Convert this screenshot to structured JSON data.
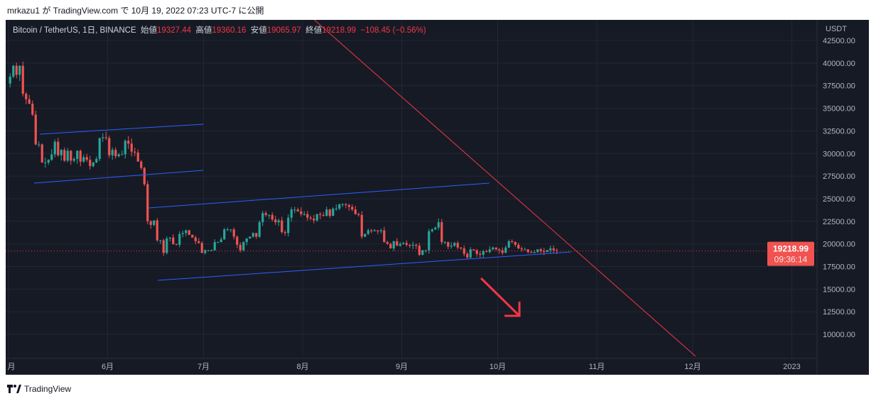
{
  "published": "mrkazu1 が TradingView.com で 10月 19, 2022 07:23 UTC-7 に公開",
  "legend": {
    "symbol": "Bitcoin / TetherUS, 1日, BINANCE",
    "open_label": "始値",
    "open": "19327.44",
    "high_label": "高値",
    "high": "19360.16",
    "low_label": "安値",
    "low": "19065.97",
    "close_label": "終値",
    "close": "19218.99",
    "change": "−108.45 (−0.56%)"
  },
  "price_axis": {
    "currency": "USDT",
    "ticks": [
      "42500.00",
      "40000.00",
      "37500.00",
      "35000.00",
      "32500.00",
      "30000.00",
      "27500.00",
      "25000.00",
      "22500.00",
      "20000.00",
      "17500.00",
      "15000.00",
      "12500.00",
      "10000.00"
    ],
    "last_price": "19218.99",
    "countdown": "09:36:14"
  },
  "time_axis": {
    "labels": [
      {
        "t": "月",
        "day": 0
      },
      {
        "t": "6月",
        "day": 31
      },
      {
        "t": "7月",
        "day": 61
      },
      {
        "t": "8月",
        "day": 92
      },
      {
        "t": "9月",
        "day": 123
      },
      {
        "t": "10月",
        "day": 153
      },
      {
        "t": "11月",
        "day": 184
      },
      {
        "t": "12月",
        "day": 214
      },
      {
        "t": "2023",
        "day": 245
      }
    ]
  },
  "colors": {
    "up": "#26a69a",
    "down": "#ef5350",
    "channel": "#2962ff",
    "trend": "#f23645"
  },
  "footer": "TradingView",
  "chart_data": {
    "type": "candlestick",
    "start_date": "2022-05-01",
    "closes": [
      38500,
      39700,
      38700,
      39700,
      36600,
      36000,
      35500,
      34300,
      31000,
      31000,
      29000,
      29000,
      29300,
      29900,
      31300,
      29800,
      30400,
      29200,
      30300,
      29200,
      29400,
      30300,
      29100,
      29600,
      29300,
      28600,
      29000,
      29400,
      31700,
      31800,
      31700,
      29800,
      30400,
      29700,
      29900,
      29900,
      31400,
      31100,
      30200,
      30100,
      29100,
      28400,
      26600,
      22500,
      22100,
      22600,
      20400,
      20400,
      19000,
      20600,
      20700,
      20000,
      19900,
      21100,
      21200,
      21500,
      21000,
      20700,
      20300,
      20100,
      19000,
      19300,
      19300,
      19300,
      20200,
      20200,
      20500,
      21600,
      21600,
      21600,
      20800,
      19900,
      19300,
      20200,
      20600,
      20800,
      21200,
      20800,
      22400,
      23400,
      23200,
      23200,
      22700,
      22400,
      22600,
      21300,
      21200,
      22900,
      23800,
      23800,
      23600,
      23300,
      23300,
      22900,
      22800,
      22600,
      23300,
      23200,
      23100,
      23800,
      23100,
      23900,
      23900,
      24400,
      24400,
      24300,
      24100,
      23800,
      23300,
      23200,
      20800,
      21100,
      21500,
      21400,
      21500,
      21400,
      21500,
      20200,
      20000,
      19500,
      20300,
      19800,
      20000,
      20100,
      19900,
      19800,
      19900,
      19800,
      18800,
      19300,
      19300,
      21400,
      21600,
      21800,
      22400,
      20200,
      20200,
      19700,
      19800,
      20100,
      19600,
      19500,
      18900,
      18500,
      19400,
      19300,
      18900,
      18800,
      19200,
      19100,
      19400,
      19600,
      19400,
      19300,
      19000,
      19600,
      20300,
      20200,
      19900,
      19500,
      19400,
      19400,
      19100,
      19000,
      19100,
      19400,
      19200,
      19100,
      19300,
      19500,
      19300,
      19219
    ],
    "ylim": [
      7500,
      45000
    ],
    "drawings": [
      {
        "kind": "channel",
        "pts": [
          [
            9.8,
            32139
          ],
          [
            60.9,
            33238
          ]
        ]
      },
      {
        "kind": "channel",
        "pts": [
          [
            8,
            26723
          ],
          [
            60.9,
            28136
          ]
        ]
      },
      {
        "kind": "channel",
        "pts": [
          [
            43.8,
            23976
          ],
          [
            150.4,
            26723
          ]
        ]
      },
      {
        "kind": "channel",
        "pts": [
          [
            46.7,
            15969
          ],
          [
            176,
            19109
          ]
        ]
      },
      {
        "kind": "trend",
        "pts": [
          [
            94.9,
            45012
          ],
          [
            214.9,
            7571
          ]
        ]
      },
      {
        "kind": "arrow",
        "pts": [
          [
            147.8,
            16205
          ],
          [
            159.8,
            12045
          ]
        ]
      }
    ]
  }
}
